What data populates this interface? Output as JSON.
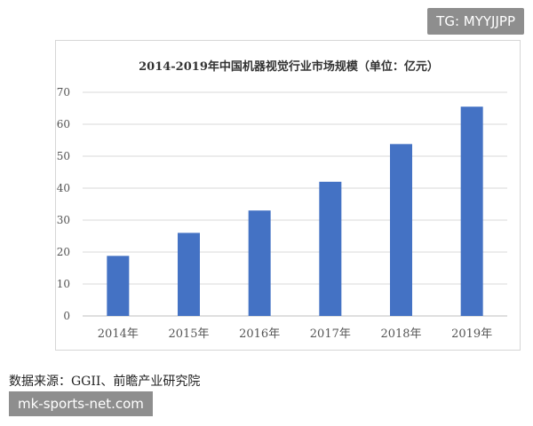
{
  "badge": {
    "text": "TG: MYYJJPP"
  },
  "chart_data": {
    "type": "bar",
    "title": "2014-2019年中国机器视觉行业市场规模（单位：亿元）",
    "categories": [
      "2014年",
      "2015年",
      "2016年",
      "2017年",
      "2018年",
      "2019年"
    ],
    "values": [
      18.8,
      26.0,
      33.0,
      42.0,
      53.8,
      65.5
    ],
    "ylim": [
      0,
      70
    ],
    "yticks": [
      0,
      10,
      20,
      30,
      40,
      50,
      60,
      70
    ],
    "grid": true,
    "bar_color": "#4472c4"
  },
  "source": "数据来源：GGII、前瞻产业研究院",
  "watermark": "mk-sports-net.com"
}
